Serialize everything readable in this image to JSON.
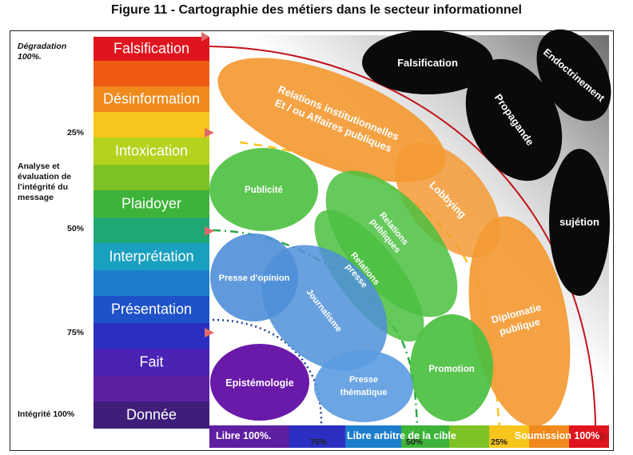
{
  "title": "Figure 11 - Cartographie des métiers dans le secteur informationnel",
  "left_labels": {
    "degradation": "Dégradation 100%.",
    "p25": "25%",
    "analyse": "Analyse et évaluation de l’intégrité du message",
    "p50": "50%",
    "p75": "75%",
    "integrite": "Intégrité 100%"
  },
  "scale_bands": [
    {
      "label": "Falsification",
      "color": "#e0141e"
    },
    {
      "label": "",
      "color": "#ee5a14"
    },
    {
      "label": "Désinformation",
      "color": "#f08a1c"
    },
    {
      "label": "",
      "color": "#f7c51c"
    },
    {
      "label": "Intoxication",
      "color": "#b5d21e"
    },
    {
      "label": "",
      "color": "#7cc224"
    },
    {
      "label": "Plaidoyer",
      "color": "#3db33a"
    },
    {
      "label": "",
      "color": "#1fa874"
    },
    {
      "label": "Interprétation",
      "color": "#1aa0bf"
    },
    {
      "label": "",
      "color": "#1c7dcc"
    },
    {
      "label": "Présentation",
      "color": "#1f52c8"
    },
    {
      "label": "",
      "color": "#2a2fc2"
    },
    {
      "label": "Fait",
      "color": "#4a22b4"
    },
    {
      "label": "",
      "color": "#5e1fa3"
    },
    {
      "label": "Donnée",
      "color": "#3f1e7a"
    }
  ],
  "ellipses": {
    "falsification": "Falsification",
    "endoctrinement": "Endoctrinement",
    "propagande": "Propagande",
    "sujetion": "sujétion",
    "relations_inst_1": "Relations institutionnelles",
    "relations_inst_2": "Et / ou Affaires publiques",
    "lobbying": "Lobbying",
    "publicite": "Publicité",
    "relations_publiques_1": "Relations",
    "relations_publiques_2": "publiques",
    "relations_presse_1": "Relations",
    "relations_presse_2": "presse",
    "presse_opinion": "Presse d’opinion",
    "journalisme": "Journalisme",
    "diplomatie_1": "Diplomatie",
    "diplomatie_2": "publique",
    "epistemologie": "Epistémologie",
    "presse_thematique_1": "Presse",
    "presse_thematique_2": "thématique",
    "promotion": "Promotion"
  },
  "bottom_scale": {
    "libre": "Libre 100%.",
    "p75": "75%",
    "libre_arbitre": "Libre arbitre de la cible",
    "p50": "50%",
    "p25": "25%",
    "soumission": "Soumission 100%"
  },
  "colors": {
    "black_ellipse": "#0a0a0a",
    "orange_ellipse": "#f39a34",
    "green_ellipse": "#4bbf3f",
    "blue_ellipse": "#4f8fd8",
    "purple_ellipse": "#6a1aa8",
    "red_curve": "#c0141c"
  }
}
